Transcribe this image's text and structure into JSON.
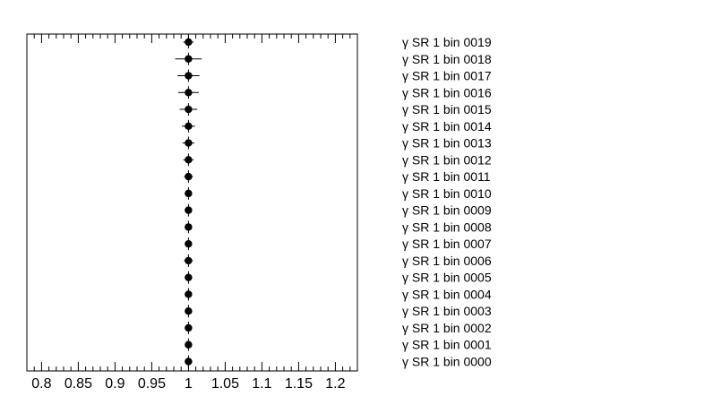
{
  "chart_data": {
    "type": "scatter",
    "title": "",
    "xlabel": "",
    "ylabel": "",
    "xlim": [
      0.78,
      1.23
    ],
    "x_ticks": [
      0.8,
      0.85,
      0.9,
      0.95,
      1,
      1.05,
      1.1,
      1.15,
      1.2
    ],
    "x_tick_labels": [
      "0.8",
      "0.85",
      "0.9",
      "0.95",
      "1",
      "1.05",
      "1.1",
      "1.15",
      "1.2"
    ],
    "grid": false,
    "points": [
      {
        "label": "γ SR 1 bin 0019",
        "value": 1.0,
        "err_lo": 0.007,
        "err_hi": 0.007
      },
      {
        "label": "γ SR 1 bin 0018",
        "value": 1.0,
        "err_lo": 0.018,
        "err_hi": 0.018
      },
      {
        "label": "γ SR 1 bin 0017",
        "value": 1.0,
        "err_lo": 0.015,
        "err_hi": 0.015
      },
      {
        "label": "γ SR 1 bin 0016",
        "value": 1.0,
        "err_lo": 0.014,
        "err_hi": 0.014
      },
      {
        "label": "γ SR 1 bin 0015",
        "value": 1.0,
        "err_lo": 0.012,
        "err_hi": 0.012
      },
      {
        "label": "γ SR 1 bin 0014",
        "value": 1.0,
        "err_lo": 0.009,
        "err_hi": 0.009
      },
      {
        "label": "γ SR 1 bin 0013",
        "value": 1.0,
        "err_lo": 0.008,
        "err_hi": 0.008
      },
      {
        "label": "γ SR 1 bin 0012",
        "value": 1.0,
        "err_lo": 0.007,
        "err_hi": 0.007
      },
      {
        "label": "γ SR 1 bin 0011",
        "value": 1.0,
        "err_lo": 0.006,
        "err_hi": 0.006
      },
      {
        "label": "γ SR 1 bin 0010",
        "value": 1.0,
        "err_lo": 0.005,
        "err_hi": 0.005
      },
      {
        "label": "γ SR 1 bin 0009",
        "value": 1.0,
        "err_lo": 0.005,
        "err_hi": 0.005
      },
      {
        "label": "γ SR 1 bin 0008",
        "value": 1.0,
        "err_lo": 0.005,
        "err_hi": 0.005
      },
      {
        "label": "γ SR 1 bin 0007",
        "value": 1.0,
        "err_lo": 0.005,
        "err_hi": 0.005
      },
      {
        "label": "γ SR 1 bin 0006",
        "value": 1.0,
        "err_lo": 0.006,
        "err_hi": 0.006
      },
      {
        "label": "γ SR 1 bin 0005",
        "value": 1.0,
        "err_lo": 0.005,
        "err_hi": 0.005
      },
      {
        "label": "γ SR 1 bin 0004",
        "value": 1.0,
        "err_lo": 0.005,
        "err_hi": 0.005
      },
      {
        "label": "γ SR 1 bin 0003",
        "value": 1.0,
        "err_lo": 0.005,
        "err_hi": 0.005
      },
      {
        "label": "γ SR 1 bin 0002",
        "value": 1.0,
        "err_lo": 0.004,
        "err_hi": 0.004
      },
      {
        "label": "γ SR 1 bin 0001",
        "value": 1.0,
        "err_lo": 0.004,
        "err_hi": 0.004
      },
      {
        "label": "γ SR 1 bin 0000",
        "value": 1.0,
        "err_lo": 0.004,
        "err_hi": 0.004
      }
    ]
  }
}
